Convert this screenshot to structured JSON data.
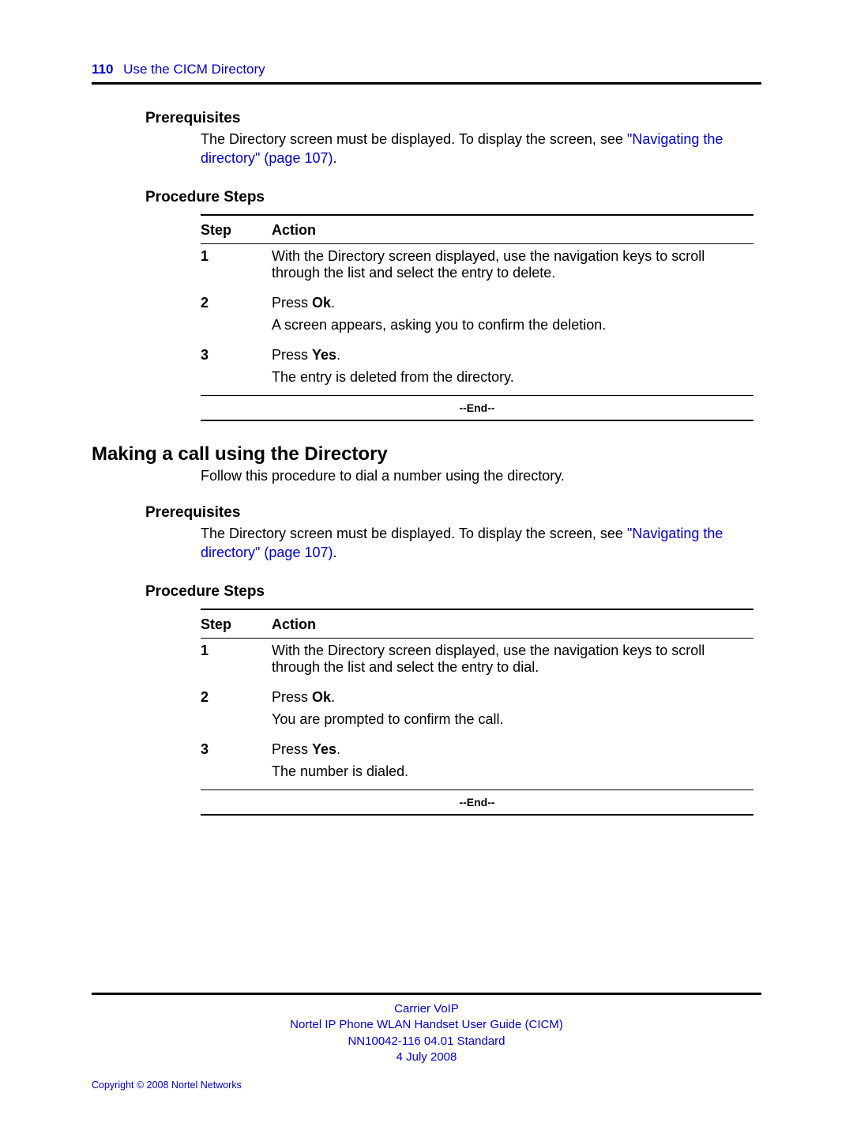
{
  "header": {
    "page_number": "110",
    "chapter": "Use the CICM Directory"
  },
  "section1": {
    "prereq_heading": "Prerequisites",
    "prereq_text": "The Directory screen must be displayed. To display the screen, see ",
    "prereq_link": "\"Navigating the directory\" (page 107)",
    "prereq_after": ".",
    "proc_heading": "Procedure Steps",
    "table": {
      "head_step": "Step",
      "head_action": "Action",
      "rows": [
        {
          "n": "1",
          "paras": [
            "With the Directory screen displayed, use the navigation keys to scroll through the list and select the entry to delete."
          ]
        },
        {
          "n": "2",
          "paras": [
            "Press <b>Ok</b>.",
            "A screen appears, asking you to confirm the deletion."
          ]
        },
        {
          "n": "3",
          "paras": [
            "Press <b>Yes</b>.",
            "The entry is deleted from the directory."
          ]
        }
      ],
      "end": "--End--"
    }
  },
  "section2": {
    "heading": "Making a call using the Directory",
    "intro": "Follow this procedure to dial a number using the directory.",
    "prereq_heading": "Prerequisites",
    "prereq_text": "The Directory screen must be displayed. To display the screen, see ",
    "prereq_link": "\"Navigating the directory\" (page 107)",
    "prereq_after": ".",
    "proc_heading": "Procedure Steps",
    "table": {
      "head_step": "Step",
      "head_action": "Action",
      "rows": [
        {
          "n": "1",
          "paras": [
            "With the Directory screen displayed, use the navigation keys to scroll through the list and select the entry to dial."
          ]
        },
        {
          "n": "2",
          "paras": [
            "Press <b>Ok</b>.",
            "You are prompted to confirm the call."
          ]
        },
        {
          "n": "3",
          "paras": [
            "Press <b>Yes</b>.",
            "The number is dialed."
          ]
        }
      ],
      "end": "--End--"
    }
  },
  "footer": {
    "line1": "Carrier VoIP",
    "line2": "Nortel IP Phone WLAN Handset User Guide (CICM)",
    "line3": "NN10042-116   04.01   Standard",
    "line4": "4 July 2008",
    "copyright": "Copyright © 2008 Nortel Networks"
  }
}
